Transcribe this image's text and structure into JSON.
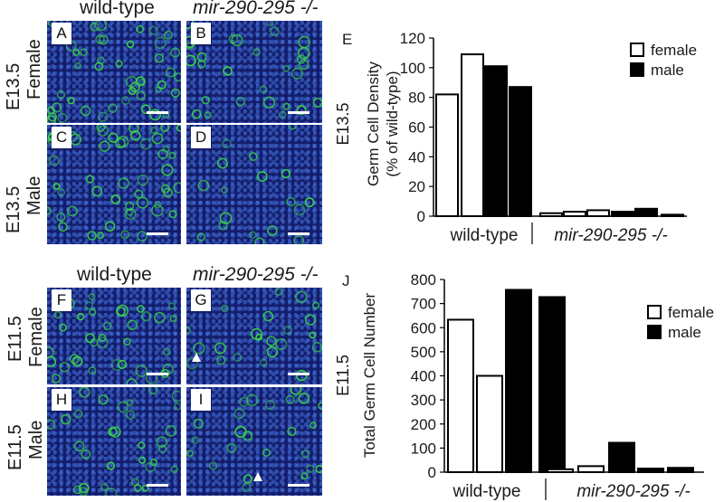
{
  "figure": {
    "top_column_headers": {
      "wild_type": "wild-type",
      "mutant": "mir-290-295 -/-"
    },
    "bottom_column_headers": {
      "wild_type": "wild-type",
      "mutant": "mir-290-295 -/-"
    },
    "row_labels": {
      "e135_female": {
        "stage": "E13.5",
        "sex": "Female"
      },
      "e135_male": {
        "stage": "E13.5",
        "sex": "Male"
      },
      "e115_female": {
        "stage": "E11.5",
        "sex": "Female"
      },
      "e115_male": {
        "stage": "E11.5",
        "sex": "Male"
      }
    },
    "panels": [
      {
        "letter": "A",
        "green": 0.85
      },
      {
        "letter": "B",
        "green": 0.45
      },
      {
        "letter": "C",
        "green": 1.0
      },
      {
        "letter": "D",
        "green": 0.2
      },
      {
        "letter": "F",
        "green": 0.7
      },
      {
        "letter": "G",
        "green": 0.3
      },
      {
        "letter": "H",
        "green": 0.55
      },
      {
        "letter": "I",
        "green": 0.35
      }
    ],
    "colors": {
      "nuclei": "#1b2a8f",
      "germ_cells": "#38d24a",
      "bar_male": "#000000",
      "bar_female": "#ffffff"
    }
  },
  "chart_data": [
    {
      "panel_label": "E",
      "type": "bar",
      "stage_label": "E13.5",
      "ylabel": "Germ Cell Density (% of wild-type)",
      "ylabel_lines": [
        "Germ Cell Density",
        "(% of wild-type)"
      ],
      "ylim": [
        0,
        120
      ],
      "yticks": [
        "0",
        "20",
        "40",
        "60",
        "80",
        "100",
        "120"
      ],
      "groups": [
        {
          "label": "wild-type",
          "italic": false
        },
        {
          "label": "mir-290-295 -/-",
          "italic": true
        }
      ],
      "legend": [
        {
          "name": "female",
          "fill": "#ffffff"
        },
        {
          "name": "male",
          "fill": "#000000"
        }
      ],
      "bars": [
        {
          "group": "wild-type",
          "sex": "female",
          "value": 82
        },
        {
          "group": "wild-type",
          "sex": "female",
          "value": 109
        },
        {
          "group": "wild-type",
          "sex": "male",
          "value": 101
        },
        {
          "group": "wild-type",
          "sex": "male",
          "value": 87
        },
        {
          "group": "mir-290-295 -/-",
          "sex": "female",
          "value": 2
        },
        {
          "group": "mir-290-295 -/-",
          "sex": "female",
          "value": 3
        },
        {
          "group": "mir-290-295 -/-",
          "sex": "female",
          "value": 4
        },
        {
          "group": "mir-290-295 -/-",
          "sex": "male",
          "value": 3
        },
        {
          "group": "mir-290-295 -/-",
          "sex": "male",
          "value": 5
        },
        {
          "group": "mir-290-295 -/-",
          "sex": "male",
          "value": 1
        }
      ]
    },
    {
      "panel_label": "J",
      "type": "bar",
      "stage_label": "E11.5",
      "ylabel": "Total Germ Cell Number",
      "ylabel_lines": [
        "Total Germ Cell Number"
      ],
      "ylim": [
        0,
        800
      ],
      "yticks": [
        "0",
        "100",
        "200",
        "300",
        "400",
        "500",
        "600",
        "700",
        "800"
      ],
      "groups": [
        {
          "label": "wild-type",
          "italic": false
        },
        {
          "label": "mir-290-295 -/-",
          "italic": true
        }
      ],
      "legend": [
        {
          "name": "female",
          "fill": "#ffffff"
        },
        {
          "name": "male",
          "fill": "#000000"
        }
      ],
      "bars": [
        {
          "group": "wild-type",
          "sex": "female",
          "value": 633
        },
        {
          "group": "wild-type",
          "sex": "female",
          "value": 400
        },
        {
          "group": "wild-type",
          "sex": "male",
          "value": 757
        },
        {
          "group": "wild-type",
          "sex": "male",
          "value": 727
        },
        {
          "group": "mir-290-295 -/-",
          "sex": "female",
          "value": 12
        },
        {
          "group": "mir-290-295 -/-",
          "sex": "female",
          "value": 25
        },
        {
          "group": "mir-290-295 -/-",
          "sex": "male",
          "value": 122
        },
        {
          "group": "mir-290-295 -/-",
          "sex": "male",
          "value": 15
        },
        {
          "group": "mir-290-295 -/-",
          "sex": "male",
          "value": 18
        }
      ]
    }
  ]
}
